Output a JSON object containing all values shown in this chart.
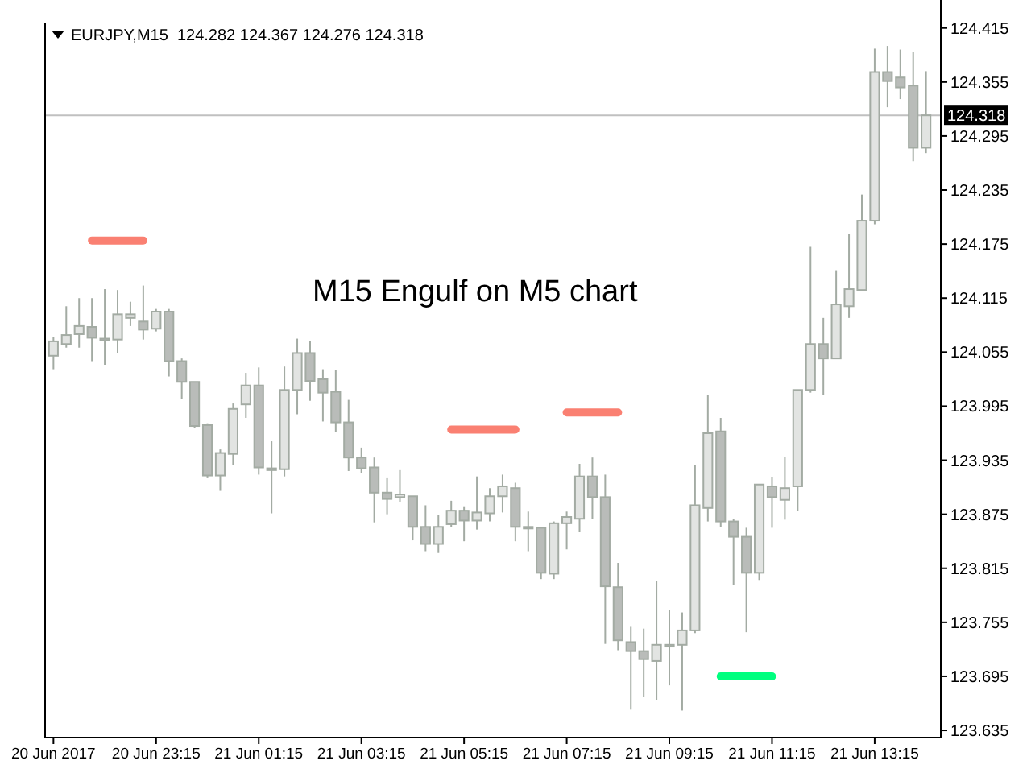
{
  "chart_data": {
    "type": "candlestick",
    "title": "EURJPY,M15  124.282 124.367 124.276 124.318",
    "annotations": [
      "M15 Engulf on M5 chart"
    ],
    "categories": [
      "20 Jun 2017",
      null,
      null,
      null,
      null,
      null,
      null,
      null,
      "20 Jun 23:15",
      null,
      null,
      null,
      null,
      null,
      null,
      null,
      "21 Jun 01:15",
      null,
      null,
      null,
      null,
      null,
      null,
      null,
      "21 Jun 03:15",
      null,
      null,
      null,
      null,
      null,
      null,
      null,
      "21 Jun 05:15",
      null,
      null,
      null,
      null,
      null,
      null,
      null,
      "21 Jun 07:15",
      null,
      null,
      null,
      null,
      null,
      null,
      null,
      "21 Jun 09:15",
      null,
      null,
      null,
      null,
      null,
      null,
      null,
      "21 Jun 11:15",
      null,
      null,
      null,
      null,
      null,
      null,
      null,
      "21 Jun 13:15",
      null,
      null,
      null,
      null
    ],
    "ylim": [
      123.627,
      124.421
    ],
    "yticks": [
      124.415,
      124.355,
      124.295,
      124.235,
      124.175,
      124.115,
      124.055,
      123.995,
      123.935,
      123.875,
      123.815,
      123.755,
      123.695,
      123.635
    ],
    "ref_lines": [
      {
        "axis": "y",
        "value": 124.318,
        "label": "124.318",
        "color": "#c0c0c0"
      }
    ],
    "series": [
      {
        "color": "#a3aba3",
        "ohlc": [
          [
            124.051,
            124.072,
            124.036,
            124.067
          ],
          [
            124.064,
            124.106,
            124.06,
            124.074
          ],
          [
            124.075,
            124.115,
            124.06,
            124.084
          ],
          [
            124.083,
            124.115,
            124.045,
            124.071
          ],
          [
            124.07,
            124.125,
            124.041,
            124.068
          ],
          [
            124.069,
            124.124,
            124.054,
            124.097
          ],
          [
            124.093,
            124.111,
            124.084,
            124.097
          ],
          [
            124.089,
            124.129,
            124.069,
            124.08
          ],
          [
            124.081,
            124.103,
            124.078,
            124.1
          ],
          [
            124.1,
            124.103,
            124.028,
            124.045
          ],
          [
            124.045,
            124.048,
            124.003,
            124.022
          ],
          [
            124.022,
            124.022,
            123.971,
            123.973
          ],
          [
            123.974,
            123.976,
            123.915,
            123.918
          ],
          [
            123.918,
            123.947,
            123.901,
            123.943
          ],
          [
            123.942,
            123.998,
            123.93,
            123.992
          ],
          [
            123.997,
            124.032,
            123.982,
            124.018
          ],
          [
            124.018,
            124.038,
            123.919,
            123.927
          ],
          [
            123.926,
            123.956,
            123.876,
            123.924
          ],
          [
            123.925,
            124.039,
            123.917,
            124.013
          ],
          [
            124.013,
            124.07,
            123.986,
            124.054
          ],
          [
            124.054,
            124.067,
            124.001,
            124.023
          ],
          [
            124.025,
            124.036,
            123.978,
            124.01
          ],
          [
            124.011,
            124.035,
            123.966,
            123.977
          ],
          [
            123.977,
            124.002,
            123.923,
            123.938
          ],
          [
            123.938,
            123.949,
            123.921,
            123.926
          ],
          [
            123.927,
            123.938,
            123.866,
            123.899
          ],
          [
            123.899,
            123.915,
            123.875,
            123.892
          ],
          [
            123.894,
            123.924,
            123.889,
            123.897
          ],
          [
            123.895,
            123.895,
            123.846,
            123.861
          ],
          [
            123.861,
            123.885,
            123.834,
            123.842
          ],
          [
            123.842,
            123.874,
            123.832,
            123.861
          ],
          [
            123.864,
            123.89,
            123.861,
            123.879
          ],
          [
            123.879,
            123.883,
            123.845,
            123.868
          ],
          [
            123.868,
            123.917,
            123.858,
            123.877
          ],
          [
            123.876,
            123.904,
            123.867,
            123.895
          ],
          [
            123.895,
            123.919,
            123.877,
            123.906
          ],
          [
            123.904,
            123.91,
            123.845,
            123.861
          ],
          [
            123.861,
            123.878,
            123.834,
            123.86
          ],
          [
            123.86,
            123.86,
            123.803,
            123.81
          ],
          [
            123.809,
            123.867,
            123.803,
            123.865
          ],
          [
            123.865,
            123.878,
            123.836,
            123.872
          ],
          [
            123.87,
            123.931,
            123.855,
            123.917
          ],
          [
            123.917,
            123.938,
            123.87,
            123.894
          ],
          [
            123.894,
            123.919,
            123.731,
            123.795
          ],
          [
            123.794,
            123.821,
            123.724,
            123.735
          ],
          [
            123.733,
            123.75,
            123.658,
            123.723
          ],
          [
            123.723,
            123.748,
            123.672,
            123.714
          ],
          [
            123.712,
            123.801,
            123.669,
            123.73
          ],
          [
            123.73,
            123.769,
            123.685,
            123.728
          ],
          [
            123.73,
            123.766,
            123.657,
            123.746
          ],
          [
            123.746,
            123.93,
            123.743,
            123.885
          ],
          [
            123.882,
            124.007,
            123.867,
            123.965
          ],
          [
            123.967,
            123.982,
            123.861,
            123.867
          ],
          [
            123.867,
            123.87,
            123.796,
            123.85
          ],
          [
            123.85,
            123.86,
            123.744,
            123.81
          ],
          [
            123.81,
            123.908,
            123.802,
            123.908
          ],
          [
            123.906,
            123.916,
            123.86,
            123.894
          ],
          [
            123.891,
            123.939,
            123.869,
            123.904
          ],
          [
            123.906,
            124.013,
            123.879,
            124.013
          ],
          [
            124.013,
            124.172,
            124.01,
            124.064
          ],
          [
            124.064,
            124.093,
            124.007,
            124.048
          ],
          [
            124.048,
            124.146,
            124.048,
            124.108
          ],
          [
            124.106,
            124.186,
            124.093,
            124.125
          ],
          [
            124.124,
            124.23,
            124.124,
            124.201
          ],
          [
            124.201,
            124.392,
            124.197,
            124.366
          ],
          [
            124.366,
            124.395,
            124.327,
            124.356
          ],
          [
            124.36,
            124.391,
            124.336,
            124.349
          ],
          [
            124.351,
            124.388,
            124.267,
            124.282
          ],
          [
            124.282,
            124.367,
            124.276,
            124.318
          ]
        ]
      },
      {
        "type": "line",
        "color": "#fa8072",
        "values": [
          null,
          null,
          null,
          124.179,
          124.179,
          124.179,
          124.179,
          124.179,
          null,
          null,
          null,
          null,
          null,
          null,
          null,
          null,
          null,
          null,
          null,
          null,
          null,
          null,
          null,
          null,
          null,
          null,
          null,
          null,
          null,
          null,
          null,
          null,
          null,
          null,
          null,
          null,
          null,
          null,
          null,
          null,
          null,
          null,
          null,
          null,
          null,
          null,
          null,
          null,
          null,
          null,
          null,
          null,
          null,
          null,
          null,
          null,
          null,
          null,
          null,
          null,
          null,
          null,
          null,
          null,
          null,
          null,
          null,
          null,
          null
        ]
      },
      {
        "type": "line",
        "color": "#fa8072",
        "values": [
          null,
          null,
          null,
          null,
          null,
          null,
          null,
          null,
          null,
          null,
          null,
          null,
          null,
          null,
          null,
          null,
          null,
          null,
          null,
          null,
          null,
          null,
          null,
          null,
          null,
          null,
          null,
          null,
          null,
          null,
          null,
          123.969,
          123.969,
          123.969,
          123.969,
          123.969,
          123.969,
          null,
          null,
          null,
          null,
          null,
          null,
          null,
          null,
          null,
          null,
          null,
          null,
          null,
          null,
          null,
          null,
          null,
          null,
          null,
          null,
          null,
          null,
          null,
          null,
          null,
          null,
          null,
          null,
          null,
          null,
          null,
          null
        ]
      },
      {
        "type": "line",
        "color": "#fa8072",
        "values": [
          null,
          null,
          null,
          null,
          null,
          null,
          null,
          null,
          null,
          null,
          null,
          null,
          null,
          null,
          null,
          null,
          null,
          null,
          null,
          null,
          null,
          null,
          null,
          null,
          null,
          null,
          null,
          null,
          null,
          null,
          null,
          null,
          null,
          null,
          null,
          null,
          null,
          null,
          null,
          null,
          123.988,
          123.988,
          123.988,
          123.988,
          123.988,
          null,
          null,
          null,
          null,
          null,
          null,
          null,
          null,
          null,
          null,
          null,
          null,
          null,
          null,
          null,
          null,
          null,
          null,
          null,
          null,
          null,
          null,
          null,
          null
        ]
      },
      {
        "type": "line",
        "color": "#00ff7f",
        "values": [
          null,
          null,
          null,
          null,
          null,
          null,
          null,
          null,
          null,
          null,
          null,
          null,
          null,
          null,
          null,
          null,
          null,
          null,
          null,
          null,
          null,
          null,
          null,
          null,
          null,
          null,
          null,
          null,
          null,
          null,
          null,
          null,
          null,
          null,
          null,
          null,
          null,
          null,
          null,
          null,
          null,
          null,
          null,
          null,
          null,
          null,
          null,
          null,
          null,
          null,
          null,
          null,
          123.695,
          123.695,
          123.695,
          123.695,
          123.695,
          null,
          null,
          null,
          null,
          null,
          null,
          null,
          null,
          null,
          null,
          null,
          null
        ]
      }
    ]
  }
}
